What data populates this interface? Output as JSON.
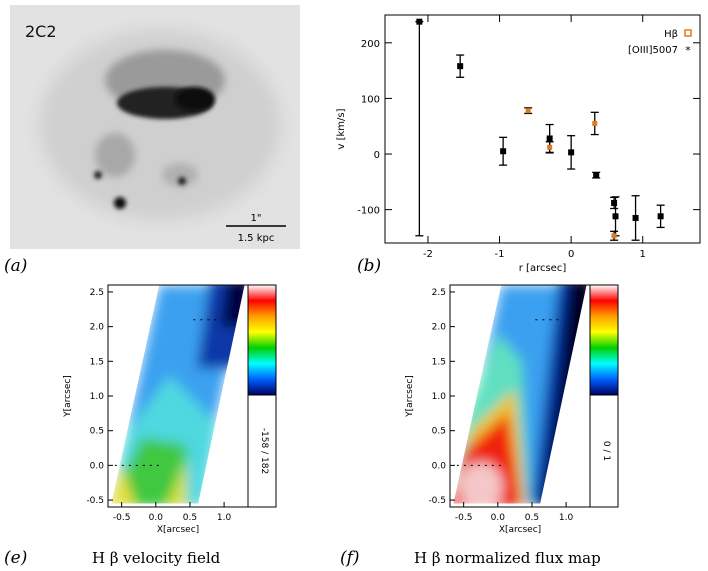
{
  "panels": {
    "a": {
      "letter": "(a)",
      "object_label": "2C2",
      "scale_bar_angular": "1\"",
      "scale_bar_physical": "1.5 kpc"
    },
    "b": {
      "letter": "(b)"
    },
    "e": {
      "letter": "(e)",
      "caption": "H β velocity field"
    },
    "f": {
      "letter": "(f)",
      "caption": "H β normalized flux map"
    }
  },
  "colors": {
    "hb_marker": "#e07a1a",
    "oiii_marker": "#000000",
    "background": "#ffffff"
  },
  "chart_data": [
    {
      "type": "image",
      "panel": "a",
      "title": "2C2",
      "annotation": "1\" = 1.5 kpc"
    },
    {
      "type": "scatter",
      "panel": "b",
      "xlabel": "r [arcsec]",
      "ylabel": "v [km/s]",
      "xlim": [
        -2.6,
        1.8
      ],
      "ylim": [
        -160,
        250
      ],
      "xticks": [
        -2,
        -1,
        0,
        1
      ],
      "yticks": [
        -100,
        0,
        100,
        200
      ],
      "xtick_labels": [
        "-2",
        "-1",
        "0",
        "1"
      ],
      "ytick_labels": [
        "-100",
        "0",
        "100",
        "200"
      ],
      "legend": {
        "placement": "top-right",
        "entries": [
          "Hβ",
          "[OIII]5007"
        ]
      },
      "series": [
        {
          "name": "Hβ",
          "marker": "square-open",
          "points": [
            {
              "x": -0.6,
              "y": 78,
              "yerr": 5
            },
            {
              "x": -0.3,
              "y": 12,
              "yerr": 10
            },
            {
              "x": 0.33,
              "y": 55,
              "yerr": 20
            },
            {
              "x": 0.6,
              "y": -147,
              "yerr": 8
            }
          ]
        },
        {
          "name": "[OIII]5007",
          "marker": "star",
          "points": [
            {
              "x": -2.12,
              "y": 238,
              "yerr_low": 385,
              "yerr_high": 0
            },
            {
              "x": -1.55,
              "y": 158,
              "yerr": 20
            },
            {
              "x": -0.95,
              "y": 5,
              "yerr": 25
            },
            {
              "x": -0.3,
              "y": 28,
              "yerr": 25
            },
            {
              "x": 0.0,
              "y": 3,
              "yerr": 30
            },
            {
              "x": 0.35,
              "y": -38,
              "yerr": 5
            },
            {
              "x": 0.6,
              "y": -88,
              "yerr": 10
            },
            {
              "x": 0.62,
              "y": -112,
              "yerr": 35
            },
            {
              "x": 0.9,
              "y": -115,
              "yerr": 40
            },
            {
              "x": 1.25,
              "y": -112,
              "yerr": 20
            }
          ]
        }
      ]
    },
    {
      "type": "heatmap",
      "panel": "e",
      "title": "H β velocity field",
      "xlabel": "X[arcsec]",
      "ylabel": "Y[arcsec]",
      "xlim": [
        -0.7,
        1.35
      ],
      "ylim": [
        -0.6,
        2.6
      ],
      "xticks": [
        -0.5,
        0.0,
        0.5,
        1.0
      ],
      "xtick_labels": [
        "-0.5",
        "0.0",
        "0.5",
        "1.0"
      ],
      "yticks": [
        -0.5,
        0.0,
        0.5,
        1.0,
        1.5,
        2.0,
        2.5
      ],
      "ytick_labels": [
        "-0.5",
        "0.0",
        "0.5",
        "1.0",
        "1.5",
        "2.0",
        "2.5"
      ],
      "colorbar_range": "-158 / 182",
      "colormap": [
        "#ffffff",
        "#ff0000",
        "#ffa000",
        "#ffff00",
        "#00d000",
        "#00ffff",
        "#0060ff",
        "#000060"
      ]
    },
    {
      "type": "heatmap",
      "panel": "f",
      "title": "H β normalized flux map",
      "xlabel": "X[arcsec]",
      "ylabel": "Y[arcsec]",
      "xlim": [
        -0.7,
        1.35
      ],
      "ylim": [
        -0.6,
        2.6
      ],
      "xticks": [
        -0.5,
        0.0,
        0.5,
        1.0
      ],
      "xtick_labels": [
        "-0.5",
        "0.0",
        "0.5",
        "1.0"
      ],
      "yticks": [
        -0.5,
        0.0,
        0.5,
        1.0,
        1.5,
        2.0,
        2.5
      ],
      "ytick_labels": [
        "-0.5",
        "0.0",
        "0.5",
        "1.0",
        "1.5",
        "2.0",
        "2.5"
      ],
      "colorbar_range": "0 / 1",
      "colormap": [
        "#ffffff",
        "#ff0000",
        "#ffa000",
        "#ffff00",
        "#00d000",
        "#00ffff",
        "#0060ff",
        "#000060"
      ]
    }
  ]
}
